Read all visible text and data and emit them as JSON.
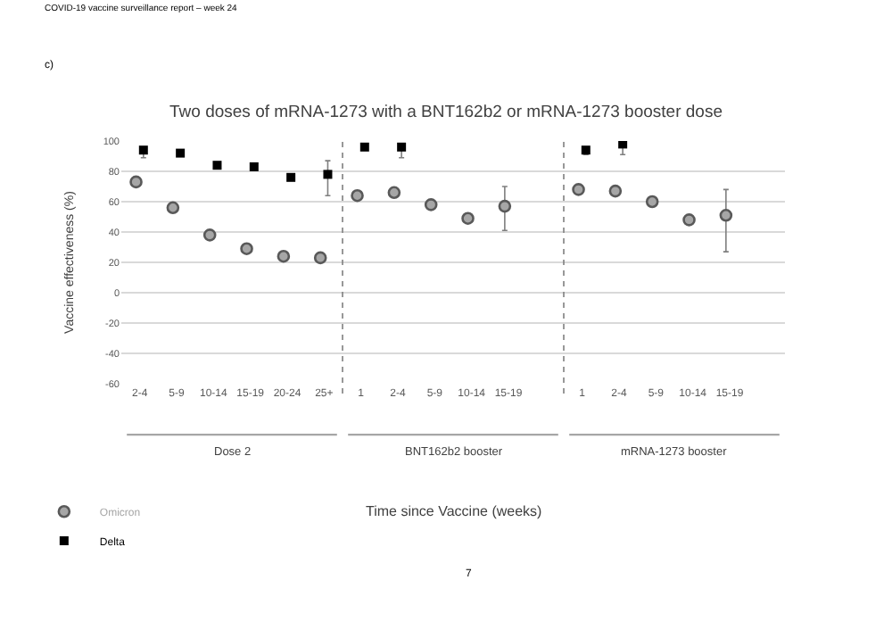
{
  "chart_data": {
    "type": "scatter",
    "title": "Two doses of mRNA-1273 with a BNT162b2 or mRNA-1273 booster dose",
    "ylabel": "Vaccine effectiveness (%)",
    "annotations": [
      "COVID-19 vaccine surveillance report – week 24",
      "c)",
      "Dose 2",
      "BNT162b2 booster",
      "mRNA-1273 booster",
      "Time since Vaccine (weeks)",
      "7"
    ],
    "categories": [
      "2-4",
      "5-9",
      "10-14",
      "15-19",
      "20-24",
      "25+",
      "1",
      "2-4",
      "5-9",
      "10-14",
      "15-19",
      null,
      "1",
      "2-4",
      "5-9",
      "10-14",
      "15-19",
      null
    ],
    "series": [
      {
        "name": "Omicron",
        "color": "#a6a6a6",
        "marker": "circle",
        "values": [
          73,
          56,
          38,
          29,
          24,
          23,
          64,
          66,
          58,
          49,
          57,
          null,
          68,
          67,
          60,
          48,
          51,
          null
        ],
        "errors": [
          null,
          null,
          null,
          null,
          null,
          null,
          null,
          null,
          null,
          null,
          [
            41,
            70
          ],
          null,
          null,
          null,
          null,
          null,
          [
            27,
            68
          ],
          null
        ]
      },
      {
        "name": "Delta",
        "color": "#000000",
        "marker": "square",
        "values": [
          94,
          92,
          84,
          83,
          76,
          78,
          96,
          96,
          null,
          null,
          null,
          null,
          94,
          98,
          null,
          null,
          null,
          null
        ],
        "errors": [
          [
            89,
            96
          ],
          null,
          null,
          null,
          null,
          [
            64,
            87
          ],
          null,
          [
            89,
            98
          ],
          null,
          null,
          null,
          null,
          [
            91,
            96
          ],
          [
            91,
            100
          ],
          null,
          null,
          null,
          null
        ]
      }
    ],
    "ylim": [
      -60,
      100
    ],
    "yticks": [
      -60,
      -40,
      -20,
      0,
      20,
      40,
      60,
      80,
      100
    ],
    "grid": "y",
    "legend": "bottom left"
  }
}
